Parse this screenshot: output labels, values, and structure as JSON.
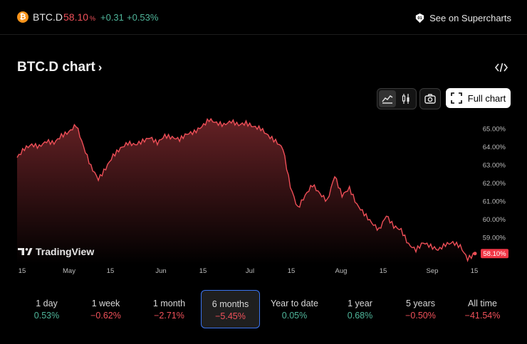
{
  "colors": {
    "up": "#4fb59a",
    "down": "#f0515a",
    "line": "#ee4e57",
    "price_tag_bg": "#f23645",
    "accent_selected": "#3b74f0"
  },
  "header": {
    "coin_glyph": "₿",
    "symbol": "BTC.D",
    "price": "58.10",
    "price_unit": "%",
    "change": "+0.31",
    "change_percent": "+0.53%",
    "supercharts_label": "See on Supercharts",
    "supercharts_icon": "tradingview-icon"
  },
  "title": {
    "text": "BTC.D chart",
    "chevron": "›"
  },
  "toolbar": {
    "embed_icon": "code-icon",
    "area_icon": "area-chart-icon",
    "candles_icon": "candlestick-icon",
    "snapshot_icon": "camera-icon",
    "full_chart_label": "Full chart",
    "full_chart_icon": "fullscreen-icon"
  },
  "watermark": "TradingView",
  "chart_data": {
    "type": "area",
    "ylim": [
      57.5,
      65.5
    ],
    "y_ticks": [
      "65.00%",
      "64.00%",
      "63.00%",
      "62.00%",
      "61.00%",
      "60.00%",
      "59.00%"
    ],
    "x_ticks": [
      "15",
      "May",
      "15",
      "Jun",
      "15",
      "Jul",
      "15",
      "Aug",
      "15",
      "Sep",
      "15"
    ],
    "last_value_label": "58.10%",
    "series": [
      {
        "values": [
          63.4,
          63.9,
          64.1,
          64.0,
          64.3,
          64.2,
          64.6,
          64.8,
          65.2,
          64.0,
          62.9,
          62.2,
          62.8,
          63.5,
          63.9,
          64.2,
          64.1,
          64.3,
          64.5,
          64.2,
          64.6,
          64.5,
          64.4,
          64.7,
          64.8,
          65.1,
          65.5,
          65.3,
          65.2,
          65.4,
          65.2,
          65.3,
          65.1,
          65.0,
          64.6,
          64.3,
          63.9,
          61.8,
          60.6,
          61.3,
          61.9,
          61.4,
          61.0,
          62.4,
          61.3,
          61.7,
          60.8,
          60.3,
          59.8,
          59.4,
          60.2,
          59.6,
          59.4,
          58.6,
          58.3,
          58.7,
          58.5,
          58.3,
          58.6,
          58.7,
          58.5,
          57.8,
          58.1
        ]
      }
    ]
  },
  "periods": [
    {
      "label": "1 day",
      "value": "0.53%",
      "dir": "up"
    },
    {
      "label": "1 week",
      "value": "−0.62%",
      "dir": "down"
    },
    {
      "label": "1 month",
      "value": "−2.71%",
      "dir": "down"
    },
    {
      "label": "6 months",
      "value": "−5.45%",
      "dir": "down",
      "selected": true
    },
    {
      "label": "Year to date",
      "value": "0.05%",
      "dir": "up"
    },
    {
      "label": "1 year",
      "value": "0.68%",
      "dir": "up"
    },
    {
      "label": "5 years",
      "value": "−0.50%",
      "dir": "down"
    },
    {
      "label": "All time",
      "value": "−41.54%",
      "dir": "down"
    }
  ]
}
